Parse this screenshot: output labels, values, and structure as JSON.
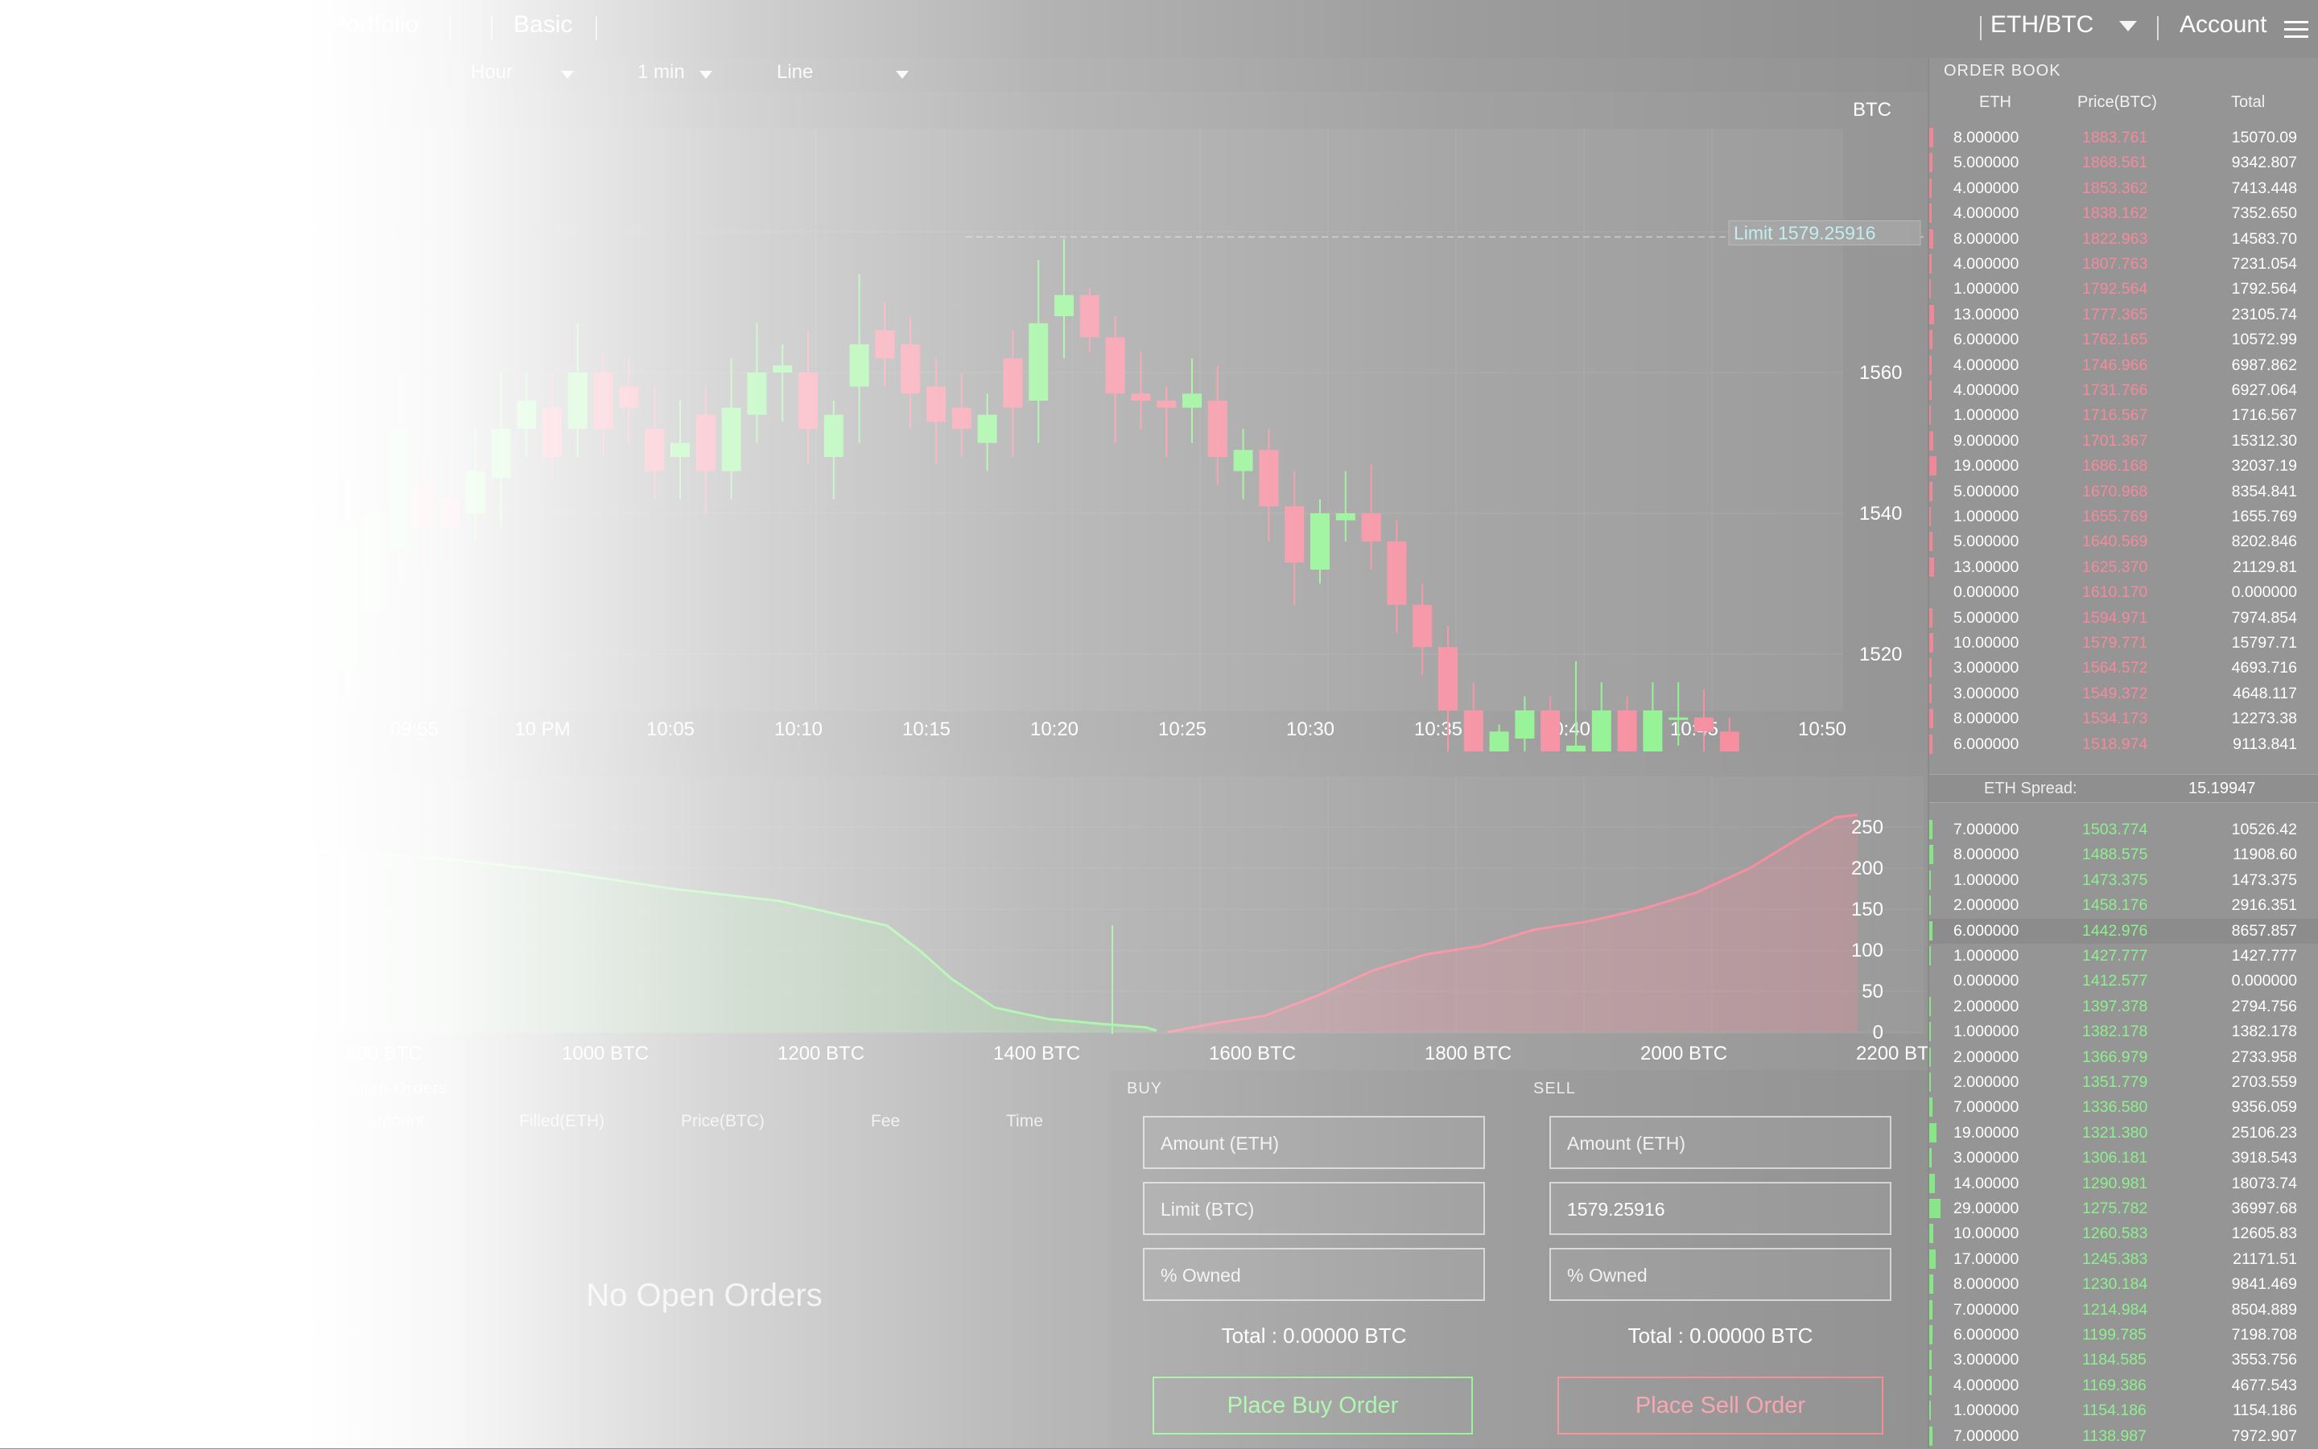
{
  "header": {
    "nav": [
      "Portfolio",
      "Basic"
    ],
    "pair": "ETH/BTC",
    "account": "Account"
  },
  "toolbar": {
    "interval": "Hour",
    "candle": "1 min",
    "style": "Line"
  },
  "price_chart": {
    "currency_label": "BTC",
    "limit_label": "Limit 1579.25916",
    "y_ticks": [
      "1560",
      "1540",
      "1520"
    ],
    "x_ticks": [
      "09:55",
      "10 PM",
      "10:05",
      "10:10",
      "10:15",
      "10:20",
      "10:25",
      "10:30",
      "10:35",
      "10:40",
      "10:45",
      "10:50"
    ],
    "candles": [
      [
        1518,
        1538,
        1514,
        1546
      ],
      [
        1526,
        1540,
        1522,
        1546
      ],
      [
        1535,
        1552,
        1530,
        1560
      ],
      [
        1544,
        1538,
        1532,
        1548
      ],
      [
        1542,
        1538,
        1532,
        1548
      ],
      [
        1540,
        1546,
        1536,
        1552
      ],
      [
        1545,
        1552,
        1538,
        1560
      ],
      [
        1552,
        1556,
        1548,
        1560
      ],
      [
        1555,
        1548,
        1545,
        1560
      ],
      [
        1552,
        1560,
        1548,
        1567
      ],
      [
        1560,
        1552,
        1548,
        1563
      ],
      [
        1558,
        1555,
        1550,
        1562
      ],
      [
        1552,
        1546,
        1542,
        1558
      ],
      [
        1548,
        1550,
        1542,
        1556
      ],
      [
        1554,
        1546,
        1540,
        1558
      ],
      [
        1546,
        1555,
        1542,
        1562
      ],
      [
        1554,
        1560,
        1550,
        1567
      ],
      [
        1560,
        1561,
        1553,
        1564
      ],
      [
        1560,
        1552,
        1547,
        1566
      ],
      [
        1548,
        1554,
        1542,
        1556
      ],
      [
        1558,
        1564,
        1550,
        1574
      ],
      [
        1566,
        1562,
        1558,
        1570
      ],
      [
        1564,
        1557,
        1552,
        1568
      ],
      [
        1558,
        1553,
        1547,
        1562
      ],
      [
        1555,
        1552,
        1548,
        1560
      ],
      [
        1550,
        1554,
        1546,
        1557
      ],
      [
        1562,
        1555,
        1548,
        1566
      ],
      [
        1556,
        1567,
        1550,
        1576
      ],
      [
        1568,
        1571,
        1562,
        1579
      ],
      [
        1571,
        1565,
        1563,
        1572
      ],
      [
        1565,
        1557,
        1550,
        1568
      ],
      [
        1557,
        1556,
        1552,
        1563
      ],
      [
        1556,
        1555,
        1548,
        1558
      ],
      [
        1555,
        1557,
        1550,
        1562
      ],
      [
        1556,
        1548,
        1544,
        1561
      ],
      [
        1546,
        1549,
        1542,
        1552
      ],
      [
        1549,
        1541,
        1536,
        1552
      ],
      [
        1541,
        1533,
        1527,
        1546
      ],
      [
        1532,
        1540,
        1530,
        1542
      ],
      [
        1539,
        1540,
        1536,
        1546
      ],
      [
        1540,
        1536,
        1532,
        1547
      ],
      [
        1536,
        1527,
        1523,
        1539
      ],
      [
        1527,
        1521,
        1517,
        1530
      ],
      [
        1521,
        1512,
        1506,
        1524
      ],
      [
        1512,
        1504,
        1502,
        1516
      ],
      [
        1504,
        1509,
        1500,
        1510
      ],
      [
        1508,
        1512,
        1505,
        1514
      ],
      [
        1512,
        1503,
        1498,
        1514
      ],
      [
        1503,
        1507,
        1500,
        1519
      ],
      [
        1504,
        1512,
        1502,
        1516
      ],
      [
        1512,
        1505,
        1500,
        1514
      ],
      [
        1505,
        1512,
        1503,
        1516
      ],
      [
        1511,
        1511,
        1507,
        1516
      ],
      [
        1511,
        1509,
        1504,
        1515
      ],
      [
        1509,
        1503,
        1500,
        1511
      ],
      [
        1503,
        1498,
        1496,
        1506
      ],
      [
        1498,
        1490,
        1486,
        1500
      ],
      [
        1490,
        1486,
        1482,
        1494
      ],
      [
        1485,
        1485,
        1482,
        1488
      ]
    ],
    "limit_price": 1579.25916
  },
  "depth_chart": {
    "y_ticks": [
      "250",
      "200",
      "150",
      "100",
      "50",
      "0"
    ],
    "x_ticks": [
      "800 BTC",
      "1000 BTC",
      "1200 BTC",
      "1400 BTC",
      "1600 BTC",
      "1800 BTC",
      "2000 BTC",
      "2200 BTC"
    ],
    "bid_series": [
      [
        600,
        235
      ],
      [
        700,
        225
      ],
      [
        800,
        220
      ],
      [
        900,
        210
      ],
      [
        1000,
        195
      ],
      [
        1100,
        175
      ],
      [
        1200,
        160
      ],
      [
        1300,
        130
      ],
      [
        1330,
        100
      ],
      [
        1360,
        65
      ],
      [
        1400,
        30
      ],
      [
        1450,
        16
      ],
      [
        1500,
        10
      ],
      [
        1540,
        6
      ],
      [
        1550,
        2
      ]
    ],
    "ask_series": [
      [
        1560,
        0
      ],
      [
        1600,
        10
      ],
      [
        1650,
        20
      ],
      [
        1700,
        45
      ],
      [
        1750,
        75
      ],
      [
        1800,
        95
      ],
      [
        1850,
        105
      ],
      [
        1900,
        125
      ],
      [
        1950,
        135
      ],
      [
        2000,
        150
      ],
      [
        2050,
        170
      ],
      [
        2100,
        200
      ],
      [
        2150,
        240
      ],
      [
        2180,
        262
      ],
      [
        2200,
        265
      ]
    ],
    "colors": {
      "bid": "#8ef08e",
      "ask": "#f58a9c"
    }
  },
  "open_orders": {
    "title": "Open Orders",
    "columns": [
      "Amount",
      "Filled(ETH)",
      "Price(BTC)",
      "Fee",
      "Time"
    ],
    "empty": "No Open Orders"
  },
  "buy": {
    "title": "BUY",
    "amount_placeholder": "Amount (ETH)",
    "limit_placeholder": "Limit (BTC)",
    "owned_placeholder": "% Owned",
    "total": "Total : 0.00000 BTC",
    "button": "Place Buy Order"
  },
  "sell": {
    "title": "SELL",
    "amount_placeholder": "Amount (ETH)",
    "limit_value": "1579.25916",
    "owned_placeholder": "% Owned",
    "total": "Total : 0.00000 BTC",
    "button": "Place Sell Order"
  },
  "orderbook": {
    "title": "ORDER BOOK",
    "headers": [
      "ETH",
      "Price(BTC)",
      "Total"
    ],
    "asks": [
      [
        "8.000000",
        "1883.761",
        "15070.09",
        0.1
      ],
      [
        "5.000000",
        "1868.561",
        "9342.807",
        0.08
      ],
      [
        "4.000000",
        "1853.362",
        "7413.448",
        0.07
      ],
      [
        "4.000000",
        "1838.162",
        "7352.650",
        0.07
      ],
      [
        "8.000000",
        "1822.963",
        "14583.70",
        0.1
      ],
      [
        "4.000000",
        "1807.763",
        "7231.054",
        0.07
      ],
      [
        "1.000000",
        "1792.564",
        "1792.564",
        0.05
      ],
      [
        "13.00000",
        "1777.365",
        "23105.74",
        0.14
      ],
      [
        "6.000000",
        "1762.165",
        "10572.99",
        0.09
      ],
      [
        "4.000000",
        "1746.966",
        "6987.862",
        0.07
      ],
      [
        "4.000000",
        "1731.766",
        "6927.064",
        0.07
      ],
      [
        "1.000000",
        "1716.567",
        "1716.567",
        0.05
      ],
      [
        "9.000000",
        "1701.367",
        "15312.30",
        0.11
      ],
      [
        "19.00000",
        "1686.168",
        "32037.19",
        0.2
      ],
      [
        "5.000000",
        "1670.968",
        "8354.841",
        0.08
      ],
      [
        "1.000000",
        "1655.769",
        "1655.769",
        0.05
      ],
      [
        "5.000000",
        "1640.569",
        "8202.846",
        0.08
      ],
      [
        "13.00000",
        "1625.370",
        "21129.81",
        0.14
      ],
      [
        "0.000000",
        "1610.170",
        "0.000000",
        0.0
      ],
      [
        "5.000000",
        "1594.971",
        "7974.854",
        0.08
      ],
      [
        "10.00000",
        "1579.771",
        "15797.71",
        0.12
      ],
      [
        "3.000000",
        "1564.572",
        "4693.716",
        0.06
      ],
      [
        "3.000000",
        "1549.372",
        "4648.117",
        0.06
      ],
      [
        "8.000000",
        "1534.173",
        "12273.38",
        0.1
      ],
      [
        "6.000000",
        "1518.974",
        "9113.841",
        0.09
      ]
    ],
    "spread_label": "ETH Spread:",
    "spread_value": "15.19947",
    "bids": [
      [
        "7.000000",
        "1503.774",
        "10526.42",
        0.09
      ],
      [
        "8.000000",
        "1488.575",
        "11908.60",
        0.1
      ],
      [
        "1.000000",
        "1473.375",
        "1473.375",
        0.05
      ],
      [
        "2.000000",
        "1458.176",
        "2916.351",
        0.05
      ],
      [
        "6.000000",
        "1442.976",
        "8657.857",
        0.09
      ],
      [
        "1.000000",
        "1427.777",
        "1427.777",
        0.05
      ],
      [
        "0.000000",
        "1412.577",
        "0.000000",
        0.0
      ],
      [
        "2.000000",
        "1397.378",
        "2794.756",
        0.05
      ],
      [
        "1.000000",
        "1382.178",
        "1382.178",
        0.05
      ],
      [
        "2.000000",
        "1366.979",
        "2733.958",
        0.05
      ],
      [
        "2.000000",
        "1351.779",
        "2703.559",
        0.05
      ],
      [
        "7.000000",
        "1336.580",
        "9356.059",
        0.09
      ],
      [
        "19.00000",
        "1321.380",
        "25106.23",
        0.2
      ],
      [
        "3.000000",
        "1306.181",
        "3918.543",
        0.06
      ],
      [
        "14.00000",
        "1290.981",
        "18073.74",
        0.15
      ],
      [
        "29.00000",
        "1275.782",
        "36997.68",
        0.3
      ],
      [
        "10.00000",
        "1260.583",
        "12605.83",
        0.12
      ],
      [
        "17.00000",
        "1245.383",
        "21171.51",
        0.18
      ],
      [
        "8.000000",
        "1230.184",
        "9841.469",
        0.1
      ],
      [
        "7.000000",
        "1214.984",
        "8504.889",
        0.09
      ],
      [
        "6.000000",
        "1199.785",
        "7198.708",
        0.09
      ],
      [
        "3.000000",
        "1184.585",
        "3553.756",
        0.06
      ],
      [
        "4.000000",
        "1169.386",
        "4677.543",
        0.07
      ],
      [
        "1.000000",
        "1154.186",
        "1154.186",
        0.05
      ],
      [
        "7.000000",
        "1138.987",
        "7972.907",
        0.09
      ]
    ]
  }
}
